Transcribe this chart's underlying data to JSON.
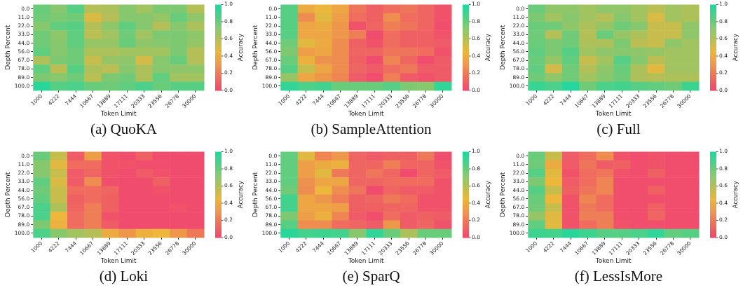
{
  "chart_data": [
    {
      "type": "heatmap",
      "title": "(a) QuoKA",
      "xlabel": "Token Limit",
      "ylabel": "Depth Percent",
      "clabel": "Accuracy",
      "categories": [
        "1000",
        "4222",
        "7444",
        "10667",
        "13889",
        "17111",
        "20333",
        "23556",
        "26778",
        "30000"
      ],
      "y_categories": [
        "0.0",
        "11.0",
        "22.0",
        "33.0",
        "44.0",
        "56.0",
        "67.0",
        "78.0",
        "89.0",
        "100.0"
      ],
      "clim": [
        0,
        1
      ],
      "cticks": [
        {
          "value": 0,
          "label": "0.0"
        },
        {
          "value": 0.2,
          "label": "0.2"
        },
        {
          "value": 0.4,
          "label": "0.4"
        },
        {
          "value": 0.6,
          "label": "0.6"
        },
        {
          "value": 0.8,
          "label": "0.8"
        },
        {
          "value": 1,
          "label": "1.0"
        }
      ],
      "cells": [
        [
          0.8,
          0.72,
          0.85,
          0.6,
          0.62,
          0.72,
          0.65,
          0.75,
          0.75,
          0.6
        ],
        [
          0.78,
          0.75,
          0.78,
          0.5,
          0.6,
          0.72,
          0.72,
          0.68,
          0.8,
          0.7
        ],
        [
          0.72,
          0.82,
          0.85,
          0.6,
          0.7,
          0.82,
          0.72,
          0.6,
          0.72,
          0.62
        ],
        [
          0.78,
          0.7,
          0.82,
          0.58,
          0.65,
          0.78,
          0.65,
          0.75,
          0.75,
          0.7
        ],
        [
          0.78,
          0.72,
          0.82,
          0.68,
          0.68,
          0.8,
          0.7,
          0.72,
          0.75,
          0.68
        ],
        [
          0.82,
          0.72,
          0.78,
          0.62,
          0.62,
          0.65,
          0.65,
          0.65,
          0.75,
          0.6
        ],
        [
          0.62,
          0.75,
          0.78,
          0.55,
          0.68,
          0.7,
          0.52,
          0.72,
          0.8,
          0.6
        ],
        [
          0.82,
          0.58,
          0.85,
          0.62,
          0.58,
          0.72,
          0.62,
          0.72,
          0.7,
          0.7
        ],
        [
          0.75,
          0.72,
          0.78,
          0.58,
          0.75,
          0.78,
          0.62,
          0.82,
          0.65,
          0.65
        ],
        [
          0.97,
          0.85,
          0.88,
          0.8,
          0.78,
          0.82,
          0.88,
          0.8,
          0.85,
          0.85
        ]
      ]
    },
    {
      "type": "heatmap",
      "title": "(b) SampleAttention",
      "xlabel": "Token Limit",
      "ylabel": "Depth Percent",
      "clabel": "Accuracy",
      "categories": [
        "1000",
        "4222",
        "7444",
        "10667",
        "13889",
        "17111",
        "20333",
        "23556",
        "26778",
        "30000"
      ],
      "y_categories": [
        "0.0",
        "11.0",
        "22.0",
        "33.0",
        "44.0",
        "56.0",
        "67.0",
        "78.0",
        "89.0",
        "100.0"
      ],
      "clim": [
        0,
        1
      ],
      "cticks": [
        {
          "value": 0,
          "label": "0.0"
        },
        {
          "value": 0.2,
          "label": "0.2"
        },
        {
          "value": 0.4,
          "label": "0.4"
        },
        {
          "value": 0.6,
          "label": "0.6"
        },
        {
          "value": 0.8,
          "label": "0.8"
        },
        {
          "value": 1,
          "label": "1.0"
        }
      ],
      "cells": [
        [
          0.85,
          0.4,
          0.45,
          0.38,
          0.18,
          0.1,
          0.15,
          0.18,
          0.12,
          0.05
        ],
        [
          0.85,
          0.28,
          0.48,
          0.35,
          0.15,
          0.1,
          0.28,
          0.15,
          0.12,
          0.05
        ],
        [
          0.85,
          0.38,
          0.4,
          0.32,
          0.05,
          0.12,
          0.22,
          0.18,
          0.12,
          0.03
        ],
        [
          0.85,
          0.38,
          0.38,
          0.32,
          0.22,
          0.02,
          0.15,
          0.1,
          0.1,
          0.05
        ],
        [
          0.78,
          0.48,
          0.4,
          0.28,
          0.1,
          0.05,
          0.15,
          0.1,
          0.1,
          0.08
        ],
        [
          0.75,
          0.35,
          0.38,
          0.28,
          0.12,
          0.12,
          0.18,
          0.18,
          0.15,
          0.05
        ],
        [
          0.8,
          0.42,
          0.3,
          0.28,
          0.1,
          0.02,
          0.25,
          0.12,
          0.03,
          0.08
        ],
        [
          0.85,
          0.55,
          0.38,
          0.28,
          0.12,
          0.08,
          0.15,
          0.2,
          0.08,
          0.08
        ],
        [
          0.68,
          0.38,
          0.32,
          0.25,
          0.08,
          0.03,
          0.22,
          0.08,
          0.05,
          0.08
        ],
        [
          0.95,
          0.88,
          0.9,
          0.8,
          0.8,
          0.8,
          0.85,
          0.75,
          0.72,
          0.95
        ]
      ]
    },
    {
      "type": "heatmap",
      "title": "(c) Full",
      "xlabel": "Token Limit",
      "ylabel": "Depth Percent",
      "clabel": "Accuracy",
      "categories": [
        "1000",
        "4222",
        "7444",
        "10667",
        "13889",
        "17111",
        "20333",
        "23556",
        "26778",
        "30000"
      ],
      "y_categories": [
        "0.0",
        "11.0",
        "22.0",
        "33.0",
        "44.0",
        "56.0",
        "67.0",
        "78.0",
        "89.0",
        "100.0"
      ],
      "clim": [
        0,
        1
      ],
      "cticks": [
        {
          "value": 0,
          "label": "0.0"
        },
        {
          "value": 0.2,
          "label": "0.2"
        },
        {
          "value": 0.4,
          "label": "0.4"
        },
        {
          "value": 0.6,
          "label": "0.6"
        },
        {
          "value": 0.8,
          "label": "0.8"
        },
        {
          "value": 1,
          "label": "1.0"
        }
      ],
      "cells": [
        [
          0.8,
          0.7,
          0.7,
          0.65,
          0.7,
          0.7,
          0.65,
          0.58,
          0.65,
          0.62
        ],
        [
          0.75,
          0.65,
          0.72,
          0.65,
          0.6,
          0.72,
          0.65,
          0.5,
          0.65,
          0.62
        ],
        [
          0.8,
          0.78,
          0.7,
          0.62,
          0.68,
          0.78,
          0.72,
          0.55,
          0.55,
          0.7
        ],
        [
          0.78,
          0.6,
          0.78,
          0.6,
          0.8,
          0.68,
          0.62,
          0.55,
          0.55,
          0.7
        ],
        [
          0.8,
          0.75,
          0.78,
          0.62,
          0.62,
          0.75,
          0.58,
          0.55,
          0.7,
          0.65
        ],
        [
          0.82,
          0.75,
          0.85,
          0.65,
          0.7,
          0.72,
          0.7,
          0.68,
          0.65,
          0.65
        ],
        [
          0.8,
          0.68,
          0.82,
          0.55,
          0.65,
          0.85,
          0.72,
          0.58,
          0.65,
          0.65
        ],
        [
          0.82,
          0.52,
          0.78,
          0.6,
          0.7,
          0.8,
          0.62,
          0.48,
          0.65,
          0.65
        ],
        [
          0.78,
          0.7,
          0.78,
          0.65,
          0.72,
          0.78,
          0.62,
          0.6,
          0.62,
          0.62
        ],
        [
          0.93,
          0.88,
          0.98,
          0.78,
          0.88,
          0.9,
          0.85,
          0.82,
          0.78,
          0.92
        ]
      ]
    },
    {
      "type": "heatmap",
      "title": "(d) Loki",
      "xlabel": "Token Limit",
      "ylabel": "Depth Percent",
      "clabel": "Accuracy",
      "categories": [
        "1000",
        "4222",
        "7444",
        "10667",
        "13889",
        "17111",
        "20333",
        "23556",
        "26778",
        "30000"
      ],
      "y_categories": [
        "0.0",
        "11.0",
        "22.0",
        "33.0",
        "44.0",
        "56.0",
        "67.0",
        "78.0",
        "89.0",
        "100.0"
      ],
      "clim": [
        0,
        1
      ],
      "cticks": [
        {
          "value": 0,
          "label": "0.0"
        },
        {
          "value": 0.2,
          "label": "0.2"
        },
        {
          "value": 0.4,
          "label": "0.4"
        },
        {
          "value": 0.6,
          "label": "0.6"
        },
        {
          "value": 0.8,
          "label": "0.8"
        },
        {
          "value": 1,
          "label": "1.0"
        }
      ],
      "cells": [
        [
          0.8,
          0.55,
          0.08,
          0.35,
          0.05,
          0.03,
          0.1,
          0.02,
          0.02,
          0.02
        ],
        [
          0.72,
          0.48,
          0.15,
          0.15,
          0.05,
          0.05,
          0.03,
          0.03,
          0.02,
          0.02
        ],
        [
          0.72,
          0.55,
          0.08,
          0.12,
          0.05,
          0.02,
          0.08,
          0.05,
          0.02,
          0.02
        ],
        [
          0.82,
          0.5,
          0.08,
          0.28,
          0.03,
          0.02,
          0.02,
          0.1,
          0.02,
          0.02
        ],
        [
          0.78,
          0.55,
          0.15,
          0.15,
          0.12,
          0.02,
          0.02,
          0.05,
          0.02,
          0.02
        ],
        [
          0.82,
          0.55,
          0.1,
          0.15,
          0.1,
          0.02,
          0.02,
          0.02,
          0.02,
          0.02
        ],
        [
          0.88,
          0.62,
          0.12,
          0.22,
          0.1,
          0.02,
          0.02,
          0.02,
          0.05,
          0.02
        ],
        [
          0.88,
          0.45,
          0.15,
          0.22,
          0.05,
          0.02,
          0.02,
          0.02,
          0.02,
          0.02
        ],
        [
          0.75,
          0.42,
          0.15,
          0.22,
          0.08,
          0.02,
          0.02,
          0.02,
          0.02,
          0.02
        ],
        [
          0.88,
          0.72,
          0.65,
          0.6,
          0.4,
          0.32,
          0.42,
          0.45,
          0.32,
          0.2
        ]
      ]
    },
    {
      "type": "heatmap",
      "title": "(e) SparQ",
      "xlabel": "Token Limit",
      "ylabel": "Depth Percent",
      "clabel": "Accuracy",
      "categories": [
        "1000",
        "4222",
        "7444",
        "10667",
        "13889",
        "17111",
        "20333",
        "23556",
        "26778",
        "30000"
      ],
      "y_categories": [
        "0.0",
        "11.0",
        "22.0",
        "33.0",
        "44.0",
        "56.0",
        "67.0",
        "78.0",
        "89.0",
        "100.0"
      ],
      "clim": [
        0,
        1
      ],
      "cticks": [
        {
          "value": 0,
          "label": "0.0"
        },
        {
          "value": 0.2,
          "label": "0.2"
        },
        {
          "value": 0.4,
          "label": "0.4"
        },
        {
          "value": 0.6,
          "label": "0.6"
        },
        {
          "value": 0.8,
          "label": "0.8"
        },
        {
          "value": 1,
          "label": "1.0"
        }
      ],
      "cells": [
        [
          0.82,
          0.48,
          0.25,
          0.32,
          0.12,
          0.08,
          0.1,
          0.1,
          0.2,
          0.03
        ],
        [
          0.82,
          0.35,
          0.4,
          0.42,
          0.12,
          0.12,
          0.22,
          0.12,
          0.12,
          0.05
        ],
        [
          0.82,
          0.35,
          0.48,
          0.2,
          0.12,
          0.18,
          0.12,
          0.02,
          0.12,
          0.08
        ],
        [
          0.82,
          0.3,
          0.38,
          0.38,
          0.12,
          0.12,
          0.15,
          0.15,
          0.15,
          0.05
        ],
        [
          0.78,
          0.28,
          0.45,
          0.28,
          0.18,
          0.02,
          0.12,
          0.08,
          0.08,
          0.05
        ],
        [
          0.9,
          0.38,
          0.32,
          0.22,
          0.1,
          0.12,
          0.2,
          0.15,
          0.05,
          0.05
        ],
        [
          0.9,
          0.38,
          0.38,
          0.35,
          0.1,
          0.1,
          0.12,
          0.12,
          0.05,
          0.05
        ],
        [
          0.75,
          0.35,
          0.42,
          0.25,
          0.08,
          0.03,
          0.15,
          0.08,
          0.1,
          0.08
        ],
        [
          0.85,
          0.28,
          0.28,
          0.15,
          0.12,
          0.08,
          0.32,
          0.08,
          0.12,
          0.05
        ],
        [
          0.97,
          0.9,
          0.92,
          0.9,
          0.72,
          0.95,
          0.8,
          0.62,
          0.8,
          0.8
        ]
      ]
    },
    {
      "type": "heatmap",
      "title": "(f) LessIsMore",
      "xlabel": "Token Limit",
      "ylabel": "Depth Percent",
      "clabel": "Accuracy",
      "categories": [
        "1000",
        "4222",
        "7444",
        "10667",
        "13889",
        "17111",
        "20333",
        "23556",
        "26778",
        "30000"
      ],
      "y_categories": [
        "0.0",
        "11.0",
        "22.0",
        "33.0",
        "44.0",
        "56.0",
        "67.0",
        "78.0",
        "89.0",
        "100.0"
      ],
      "clim": [
        0,
        1
      ],
      "cticks": [
        {
          "value": 0,
          "label": "0.0"
        },
        {
          "value": 0.2,
          "label": "0.2"
        },
        {
          "value": 0.4,
          "label": "0.4"
        },
        {
          "value": 0.6,
          "label": "0.6"
        },
        {
          "value": 0.8,
          "label": "0.8"
        },
        {
          "value": 1,
          "label": "1.0"
        }
      ],
      "cells": [
        [
          0.8,
          0.55,
          0.08,
          0.15,
          0.28,
          0.05,
          0.03,
          0.05,
          0.03,
          0.03
        ],
        [
          0.78,
          0.4,
          0.08,
          0.18,
          0.08,
          0.1,
          0.03,
          0.05,
          0.03,
          0.03
        ],
        [
          0.85,
          0.48,
          0.05,
          0.15,
          0.18,
          0.05,
          0.03,
          0.1,
          0.03,
          0.03
        ],
        [
          0.75,
          0.45,
          0.08,
          0.15,
          0.25,
          0.03,
          0.03,
          0.03,
          0.03,
          0.03
        ],
        [
          0.85,
          0.55,
          0.1,
          0.18,
          0.25,
          0.03,
          0.03,
          0.1,
          0.03,
          0.03
        ],
        [
          0.8,
          0.45,
          0.05,
          0.25,
          0.15,
          0.03,
          0.03,
          0.03,
          0.03,
          0.03
        ],
        [
          0.78,
          0.55,
          0.05,
          0.2,
          0.15,
          0.03,
          0.03,
          0.1,
          0.03,
          0.03
        ],
        [
          0.68,
          0.48,
          0.05,
          0.22,
          0.22,
          0.03,
          0.03,
          0.12,
          0.03,
          0.03
        ],
        [
          0.82,
          0.48,
          0.05,
          0.15,
          0.22,
          0.05,
          0.03,
          0.03,
          0.03,
          0.03
        ],
        [
          0.92,
          0.9,
          0.97,
          0.92,
          0.85,
          0.85,
          0.88,
          0.95,
          0.82,
          0.85
        ]
      ]
    }
  ]
}
